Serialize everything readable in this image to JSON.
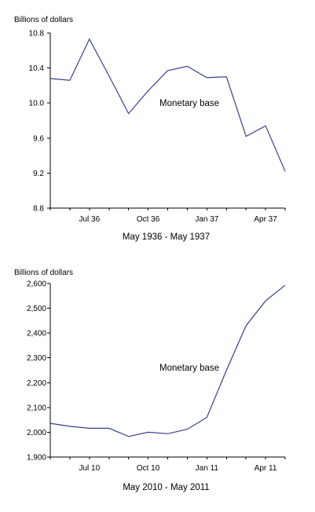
{
  "chart_data": [
    {
      "type": "line",
      "ylabel": "Billions of dollars",
      "xlabel": "May 1936 - May 1937",
      "ylim": [
        8.8,
        10.8
      ],
      "yticks": [
        "8.8",
        "9.2",
        "9.6",
        "10.0",
        "10.4",
        "10.8"
      ],
      "xlim": [
        0,
        12
      ],
      "x_tick_labels": [
        "Jul 36",
        "Oct 36",
        "Jan 37",
        "Apr 37"
      ],
      "grid": false,
      "annotation": "Monetary base",
      "colors": {
        "series": "#3a3f8f"
      },
      "series": [
        {
          "name": "Monetary base",
          "x": [
            "May 36",
            "Jun 36",
            "Jul 36",
            "Aug 36",
            "Sep 36",
            "Oct 36",
            "Nov 36",
            "Dec 36",
            "Jan 37",
            "Feb 37",
            "Mar 37",
            "Apr 37",
            "May 37"
          ],
          "values": [
            10.28,
            10.26,
            10.73,
            10.31,
            9.88,
            10.14,
            10.37,
            10.42,
            10.29,
            10.3,
            9.62,
            9.74,
            9.22
          ]
        }
      ]
    },
    {
      "type": "line",
      "ylabel": "Billions of dollars",
      "xlabel": "May 2010 - May 2011",
      "ylim": [
        1900,
        2600
      ],
      "yticks": [
        "1,900",
        "2,000",
        "2,100",
        "2,200",
        "2,300",
        "2,400",
        "2,500",
        "2,600"
      ],
      "xlim": [
        0,
        12
      ],
      "x_tick_labels": [
        "Jul 10",
        "Oct 10",
        "Jan 11",
        "Apr 11"
      ],
      "grid": false,
      "annotation": "Monetary base",
      "colors": {
        "series": "#3a3f8f"
      },
      "series": [
        {
          "name": "Monetary base",
          "x": [
            "May 10",
            "Jun 10",
            "Jul 10",
            "Aug 10",
            "Sep 10",
            "Oct 10",
            "Nov 10",
            "Dec 10",
            "Jan 11",
            "Feb 11",
            "Mar 11",
            "Apr 11",
            "May 11"
          ],
          "values": [
            2036,
            2024,
            2016,
            2016,
            1983,
            2000,
            1994,
            2012,
            2060,
            2250,
            2430,
            2530,
            2593
          ]
        }
      ]
    }
  ]
}
